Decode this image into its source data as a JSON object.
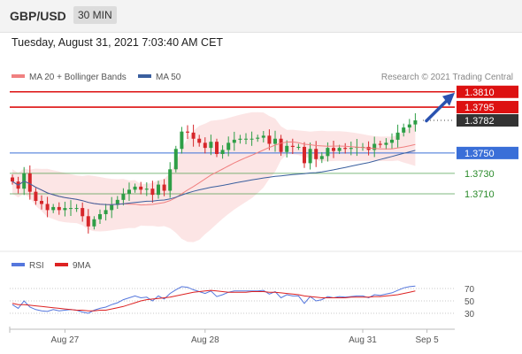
{
  "header": {
    "symbol": "GBP/USD",
    "timeframe": "30 MIN"
  },
  "timestamp": "Tuesday, August 31, 2021 7:03:40 AM CET",
  "legend": {
    "bollinger_label": "MA 20 + Bollinger Bands",
    "ma50_label": "MA 50",
    "bollinger_color": "#f08080",
    "ma50_color": "#3a5f9e"
  },
  "credit": "Research © 2021 Trading Central",
  "rsi_legend": {
    "rsi_label": "RSI",
    "ma_label": "9MA",
    "rsi_color": "#5577dd",
    "ma_color": "#dd2222"
  },
  "chart_data": {
    "type": "candlestick",
    "price_range": [
      1.3657,
      1.3815
    ],
    "levels": [
      {
        "value": 1.381,
        "label": "1.3810",
        "kind": "resistance",
        "color": "#dd1111"
      },
      {
        "value": 1.3795,
        "label": "1.3795",
        "kind": "resistance",
        "color": "#dd1111"
      },
      {
        "value": 1.3782,
        "label": "1.3782",
        "kind": "last-price",
        "color": "#333333"
      },
      {
        "value": 1.375,
        "label": "1.3750",
        "kind": "pivot",
        "color": "#3a6fd8"
      },
      {
        "value": 1.373,
        "label": "1.3730",
        "kind": "support",
        "color": "#2a8a2a"
      },
      {
        "value": 1.371,
        "label": "1.3710",
        "kind": "support",
        "color": "#2a8a2a"
      }
    ],
    "x_ticks": [
      {
        "label": "Aug 27",
        "index": 9
      },
      {
        "label": "Aug 28",
        "index": 33
      },
      {
        "label": "Aug 31",
        "index": 60
      },
      {
        "label": "Sep 5",
        "index": 71
      }
    ],
    "closes": [
      1.3722,
      1.3715,
      1.373,
      1.3712,
      1.3703,
      1.37,
      1.3694,
      1.3697,
      1.3694,
      1.3696,
      1.3696,
      1.3696,
      1.3688,
      1.3678,
      1.3685,
      1.369,
      1.3694,
      1.3699,
      1.3704,
      1.371,
      1.3714,
      1.3717,
      1.3714,
      1.3715,
      1.3709,
      1.3719,
      1.3713,
      1.3734,
      1.3754,
      1.3771,
      1.377,
      1.3764,
      1.376,
      1.3755,
      1.3761,
      1.3749,
      1.3753,
      1.376,
      1.3763,
      1.3764,
      1.3764,
      1.3764,
      1.3765,
      1.3767,
      1.3759,
      1.3764,
      1.3751,
      1.3757,
      1.3756,
      1.3756,
      1.374,
      1.3754,
      1.3744,
      1.3747,
      1.3755,
      1.3752,
      1.3755,
      1.3754,
      1.3755,
      1.3756,
      1.3756,
      1.3753,
      1.3759,
      1.3758,
      1.376,
      1.3763,
      1.377,
      1.3775,
      1.3778,
      1.3782
    ],
    "rsi": {
      "levels": [
        70,
        50,
        30
      ],
      "rsi_values": [
        44,
        38,
        50,
        40,
        36,
        34,
        33,
        36,
        34,
        35,
        36,
        35,
        32,
        30,
        35,
        38,
        40,
        44,
        47,
        52,
        55,
        58,
        55,
        56,
        50,
        58,
        53,
        62,
        68,
        73,
        72,
        68,
        65,
        62,
        66,
        57,
        60,
        64,
        66,
        66,
        66,
        66,
        66,
        67,
        61,
        65,
        55,
        60,
        58,
        58,
        46,
        57,
        50,
        52,
        57,
        55,
        57,
        56,
        57,
        58,
        58,
        55,
        60,
        59,
        61,
        63,
        67,
        71,
        73,
        74
      ],
      "ma_values": [
        46,
        44,
        44,
        43,
        42,
        41,
        40,
        39,
        38,
        37,
        36,
        35,
        35,
        34,
        34,
        35,
        35,
        37,
        39,
        41,
        44,
        47,
        50,
        52,
        53,
        54,
        55,
        56,
        58,
        60,
        62,
        64,
        65,
        66,
        67,
        66,
        65,
        64,
        64,
        64,
        64,
        65,
        65,
        65,
        64,
        64,
        63,
        62,
        61,
        60,
        58,
        57,
        56,
        55,
        55,
        55,
        55,
        55,
        56,
        56,
        56,
        56,
        57,
        57,
        58,
        59,
        60,
        62,
        64,
        66
      ]
    }
  }
}
